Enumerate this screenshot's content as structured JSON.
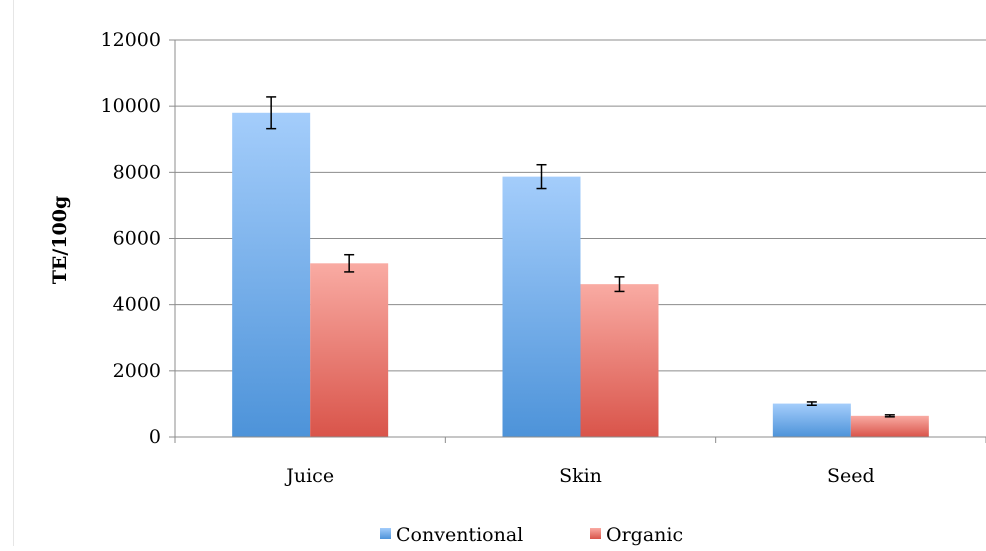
{
  "chart_data": {
    "type": "bar",
    "title": "",
    "xlabel": "",
    "ylabel": "TE/100g",
    "categories": [
      "Juice",
      "Skin",
      "Seed"
    ],
    "series": [
      {
        "name": "Conventional",
        "values": [
          9800,
          7870,
          1010
        ],
        "errors": [
          480,
          360,
          50
        ],
        "color_top": "#a4cdfb",
        "color_bottom": "#4d93d9"
      },
      {
        "name": "Organic",
        "values": [
          5250,
          4620,
          640
        ],
        "errors": [
          260,
          220,
          30
        ],
        "color_top": "#f9aba3",
        "color_bottom": "#d9544a"
      }
    ],
    "ylim": [
      0,
      12000
    ],
    "yticks": [
      0,
      2000,
      4000,
      6000,
      8000,
      10000,
      12000
    ],
    "grid": true,
    "legend_position": "bottom"
  }
}
